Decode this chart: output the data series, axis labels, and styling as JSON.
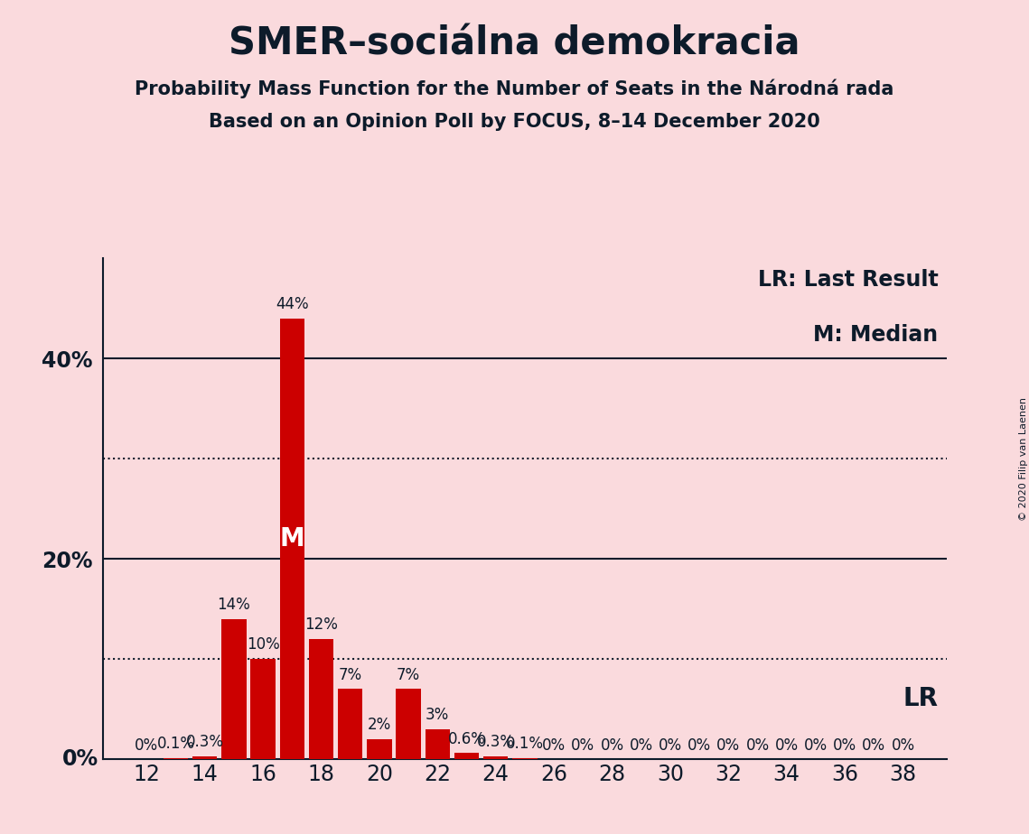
{
  "title": "SMER–sociálna demokracia",
  "subtitle1": "Probability Mass Function for the Number of Seats in the Národná rada",
  "subtitle2": "Based on an Opinion Poll by FOCUS, 8–14 December 2020",
  "copyright": "© 2020 Filip van Laenen",
  "background_color": "#fadadd",
  "bar_color": "#cc0000",
  "text_color": "#0d1b2a",
  "seats": [
    12,
    13,
    14,
    15,
    16,
    17,
    18,
    19,
    20,
    21,
    22,
    23,
    24,
    25,
    26,
    27,
    28,
    29,
    30,
    31,
    32,
    33,
    34,
    35,
    36,
    37,
    38
  ],
  "probabilities": [
    0.0,
    0.1,
    0.3,
    14.0,
    10.0,
    44.0,
    12.0,
    7.0,
    2.0,
    7.0,
    3.0,
    0.6,
    0.3,
    0.1,
    0.0,
    0.0,
    0.0,
    0.0,
    0.0,
    0.0,
    0.0,
    0.0,
    0.0,
    0.0,
    0.0,
    0.0,
    0.0
  ],
  "labels": [
    "0%",
    "0.1%",
    "0.3%",
    "14%",
    "10%",
    "44%",
    "12%",
    "7%",
    "2%",
    "7%",
    "3%",
    "0.6%",
    "0.3%",
    "0.1%",
    "0%",
    "0%",
    "0%",
    "0%",
    "0%",
    "0%",
    "0%",
    "0%",
    "0%",
    "0%",
    "0%",
    "0%",
    "0%"
  ],
  "median_seat": 17,
  "ylim": [
    0,
    50
  ],
  "solid_lines": [
    20,
    40
  ],
  "dotted_lines": [
    10,
    30
  ],
  "ytick_positions": [
    20,
    40
  ],
  "ytick_labels": [
    "20%",
    "40%"
  ],
  "title_fontsize": 30,
  "subtitle_fontsize": 15,
  "axis_tick_fontsize": 17,
  "bar_label_fontsize": 12,
  "legend_fontsize": 17,
  "median_label_fontsize": 20,
  "lr_label_fontsize": 20,
  "copyright_fontsize": 8
}
